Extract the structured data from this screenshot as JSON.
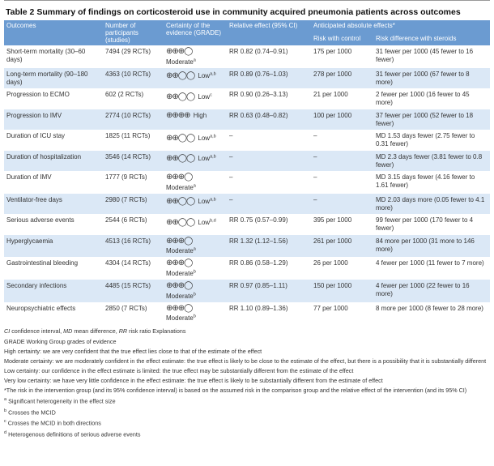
{
  "title": "Table 2 Summary of findings on corticosteroid use in community acquired pneumonia patients across outcomes",
  "table": {
    "header": [
      "Outcomes",
      "Number of participants (studies)",
      "Certainty of the evidence (GRADE)",
      "Relative effect (95% CI)",
      "Anticipated absolute effects*"
    ],
    "subheader": [
      "Risk with control",
      "Risk difference with steroids"
    ],
    "rows": [
      {
        "outcome": "Short-term mortality (30–60 days)",
        "participants": "7494 (29 RCTs)",
        "symbols": "⊕⊕⊕◯",
        "certainty": "Moderate",
        "notes": "a",
        "relative": "RR 0.82 (0.74–0.91)",
        "control": "175 per 1000",
        "difference": "31 fewer per 1000 (45 fewer to 16 fewer)"
      },
      {
        "outcome": "Long-term mortality (90–180 days)",
        "participants": "4363 (10 RCTs)",
        "symbols": "⊕⊕◯◯",
        "certainty": "Low",
        "notes": "a,b",
        "relative": "RR 0.89 (0.76–1.03)",
        "control": "278 per 1000",
        "difference": "31 fewer per 1000 (67 fewer to 8 more)"
      },
      {
        "outcome": "Progression to ECMO",
        "participants": "602 (2 RCTs)",
        "symbols": "⊕⊕◯◯",
        "certainty": "Low",
        "notes": "c",
        "relative": "RR 0.90 (0.26–3.13)",
        "control": "21 per 1000",
        "difference": "2 fewer per 1000 (16 fewer to 45 more)"
      },
      {
        "outcome": "Progression to IMV",
        "participants": "2774 (10 RCTs)",
        "symbols": "⊕⊕⊕⊕",
        "certainty": "High",
        "notes": null,
        "relative": "RR 0.63 (0.48–0.82)",
        "control": "100 per 1000",
        "difference": "37 fewer per 1000 (52 fewer to 18 fewer)"
      },
      {
        "outcome": "Duration of ICU stay",
        "participants": "1825 (11 RCTs)",
        "symbols": "⊕⊕◯◯",
        "certainty": "Low",
        "notes": "a,b",
        "relative": "–",
        "control": "–",
        "difference": "MD 1.53 days fewer (2.75 fewer to 0.31 fewer)"
      },
      {
        "outcome": "Duration of hospitalization",
        "participants": "3546 (14 RCTs)",
        "symbols": "⊕⊕◯◯",
        "certainty": "Low",
        "notes": "a,b",
        "relative": "–",
        "control": "–",
        "difference": "MD 2.3 days fewer (3.81 fewer to 0.8 fewer)"
      },
      {
        "outcome": "Duration of IMV",
        "participants": "1777 (9 RCTs)",
        "symbols": "⊕⊕⊕◯",
        "certainty": "Moderate",
        "notes": "a",
        "relative": "–",
        "control": "–",
        "difference": "MD 3.15 days fewer (4.16 fewer to 1.61 fewer)"
      },
      {
        "outcome": "Ventilator-free days",
        "participants": "2980 (7 RCTs)",
        "symbols": "⊕⊕◯◯",
        "certainty": "Low",
        "notes": "a,b",
        "relative": "–",
        "control": "–",
        "difference": "MD 2.03 days more (0.05 fewer to 4.1 more)"
      },
      {
        "outcome": "Serious adverse events",
        "participants": "2544 (6 RCTs)",
        "symbols": "⊕⊕◯◯",
        "certainty": "Low",
        "notes": "b,d",
        "relative": "RR 0.75 (0.57–0.99)",
        "control": "395 per 1000",
        "difference": "99 fewer per 1000 (170 fewer to 4 fewer)"
      },
      {
        "outcome": "Hyperglycaemia",
        "participants": "4513 (16 RCTs)",
        "symbols": "⊕⊕⊕◯",
        "certainty": "Moderate",
        "notes": "a",
        "relative": "RR 1.32 (1.12–1.56)",
        "control": "261 per 1000",
        "difference": "84 more per 1000 (31 more to 146 more)"
      },
      {
        "outcome": "Gastrointestinal bleeding",
        "participants": "4304 (14 RCTs)",
        "symbols": "⊕⊕⊕◯",
        "certainty": "Moderate",
        "notes": "b",
        "relative": "RR 0.86 (0.58–1.29)",
        "control": "26 per 1000",
        "difference": "4 fewer per 1000 (11 fewer to 7 more)"
      },
      {
        "outcome": "Secondary infections",
        "participants": "4485 (15 RCTs)",
        "symbols": "⊕⊕⊕◯",
        "certainty": "Moderate",
        "notes": "b",
        "relative": "RR 0.97 (0.85–1.11)",
        "control": "150 per 1000",
        "difference": "4 fewer per 1000 (22 fewer to 16 more)"
      },
      {
        "outcome": "Neuropsychiatric effects",
        "participants": "2850 (7 RCTs)",
        "symbols": "⊕⊕⊕◯",
        "certainty": "Moderate",
        "notes": "b",
        "relative": "RR 1.10 (0.89–1.36)",
        "control": "77 per 1000",
        "difference": "8 more per 1000 (8 fewer to 28 more)"
      }
    ]
  },
  "footer": {
    "abbreviations": [
      {
        "abbr": "CI",
        "text": "confidence interval,"
      },
      {
        "abbr": "MD",
        "text": "mean difference,"
      },
      {
        "abbr": "RR",
        "text": "risk ratio Explanations"
      }
    ],
    "lines": [
      "GRADE Working Group grades of evidence",
      "High certainty: we are very confident that the true effect lies close to that of the estimate of the effect",
      "Moderate certainty: we are moderately confident in the effect estimate: the true effect is likely to be close to the estimate of the effect, but there is a possibility that it is substantially different",
      "Low certainty: our confidence in the effect estimate is limited: the true effect may be substantially different from the estimate of the effect",
      "Very low certainty: we have very little confidence in the effect estimate: the true effect is likely to be substantially different from the estimate of effect",
      "*The risk in the intervention group (and its 95% confidence interval) is based on the assumed risk in the comparison group and the relative effect of the intervention (and its 95% CI)"
    ],
    "notes": [
      {
        "mark": "a",
        "text": "Significant heterogeneity in the effect size"
      },
      {
        "mark": "b",
        "text": "Crosses the MCID"
      },
      {
        "mark": "c",
        "text": "Crosses the MCID in both directions"
      },
      {
        "mark": "d",
        "text": "Heterogenous definitions of serious adverse events"
      }
    ]
  }
}
